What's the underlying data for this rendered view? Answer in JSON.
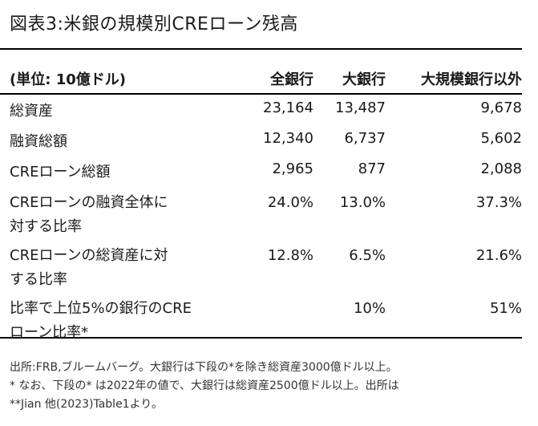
{
  "title": "図表3:米銀の規模別CREローン残高",
  "table": {
    "header": [
      "(単位: 10億ドル)",
      "全銀行",
      "大銀行",
      "大規模銀行以外"
    ],
    "rows": [
      {
        "label1": "総資産",
        "label2": "",
        "v1": "23,164",
        "v2": "13,487",
        "v3": "9,678"
      },
      {
        "label1": "融資総額",
        "label2": "",
        "v1": "12,340",
        "v2": "6,737",
        "v3": "5,602"
      },
      {
        "label1": "CREローン総額",
        "label2": "",
        "v1": "2,965",
        "v2": "877",
        "v3": "2,088"
      },
      {
        "label1": "CREローンの融資全体に",
        "label2": "対する比率",
        "v1": "24.0%",
        "v2": "13.0%",
        "v3": "37.3%"
      },
      {
        "label1": "CREローンの総資産に対",
        "label2": "する比率",
        "v1": "12.8%",
        "v2": "6.5%",
        "v3": "21.6%"
      },
      {
        "label1": "比率で上位5%の銀行のCRE",
        "label2": "ローン比率*",
        "v1": "",
        "v2": "10%",
        "v3": "51%"
      }
    ]
  },
  "notes": [
    "出所:FRB,ブルームバーグ。大銀行は下段の*を除き総資産3000億ドル以上。",
    "* なお、下段の* は2022年の値で、大銀行は総資産2500億ドル以上。出所は",
    "**Jian 他(2023)Table1より。"
  ]
}
